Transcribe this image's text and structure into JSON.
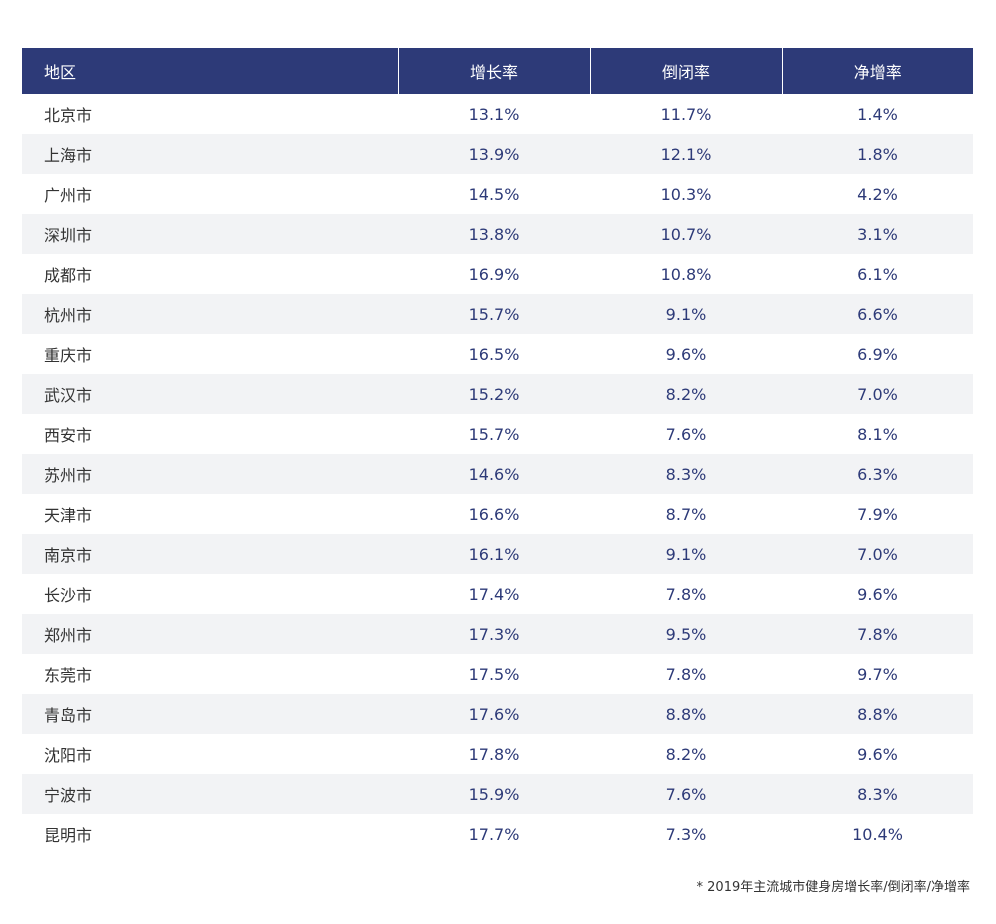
{
  "table": {
    "header": [
      "地区",
      "增长率",
      "倒闭率",
      "净增率"
    ],
    "rows": [
      [
        "北京市",
        "13.1%",
        "11.7%",
        "1.4%"
      ],
      [
        "上海市",
        "13.9%",
        "12.1%",
        "1.8%"
      ],
      [
        "广州市",
        "14.5%",
        "10.3%",
        "4.2%"
      ],
      [
        "深圳市",
        "13.8%",
        "10.7%",
        "3.1%"
      ],
      [
        "成都市",
        "16.9%",
        "10.8%",
        "6.1%"
      ],
      [
        "杭州市",
        "15.7%",
        "9.1%",
        "6.6%"
      ],
      [
        "重庆市",
        "16.5%",
        "9.6%",
        "6.9%"
      ],
      [
        "武汉市",
        "15.2%",
        "8.2%",
        "7.0%"
      ],
      [
        "西安市",
        "15.7%",
        "7.6%",
        "8.1%"
      ],
      [
        "苏州市",
        "14.6%",
        "8.3%",
        "6.3%"
      ],
      [
        "天津市",
        "16.6%",
        "8.7%",
        "7.9%"
      ],
      [
        "南京市",
        "16.1%",
        "9.1%",
        "7.0%"
      ],
      [
        "长沙市",
        "17.4%",
        "7.8%",
        "9.6%"
      ],
      [
        "郑州市",
        "17.3%",
        "9.5%",
        "7.8%"
      ],
      [
        "东莞市",
        "17.5%",
        "7.8%",
        "9.7%"
      ],
      [
        "青岛市",
        "17.6%",
        "8.8%",
        "8.8%"
      ],
      [
        "沈阳市",
        "17.8%",
        "8.2%",
        "9.6%"
      ],
      [
        "宁波市",
        "15.9%",
        "7.6%",
        "8.3%"
      ],
      [
        "昆明市",
        "17.7%",
        "7.3%",
        "10.4%"
      ]
    ]
  },
  "footnote": "* 2019年主流城市健身房增长率/倒闭率/净增率"
}
